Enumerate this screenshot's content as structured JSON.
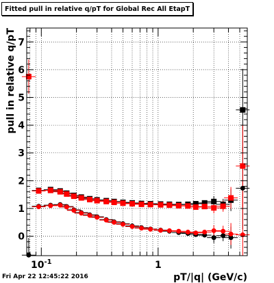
{
  "title": "Fitted pull in relative q/pT  for Global Rec All EtapT",
  "footer": "Fri Apr 22 12:45:22 2016",
  "chart_data": {
    "type": "scatter",
    "title": "Fitted pull in relative q/pT  for Global Rec All EtapT",
    "xlabel": "pT/|q| (GeV/c)",
    "ylabel": "pull in relative q/pT",
    "xscale": "log",
    "xlim": [
      0.075,
      5.8
    ],
    "ylim": [
      -0.7,
      7.5
    ],
    "grid": true,
    "x_ticks": [
      {
        "value": 0.1,
        "label": "10",
        "sup": "-1"
      },
      {
        "value": 1,
        "label": "1",
        "sup": ""
      }
    ],
    "y_ticks": [
      0,
      1,
      2,
      3,
      4,
      5,
      6,
      7
    ],
    "series": [
      {
        "color": "#000000",
        "marker": "square",
        "points": [
          [
            0.095,
            1.65
          ],
          [
            0.12,
            1.68
          ],
          [
            0.145,
            1.63
          ],
          [
            0.165,
            1.55
          ],
          [
            0.19,
            1.47
          ],
          [
            0.22,
            1.41
          ],
          [
            0.26,
            1.35
          ],
          [
            0.3,
            1.31
          ],
          [
            0.36,
            1.28
          ],
          [
            0.42,
            1.25
          ],
          [
            0.5,
            1.22
          ],
          [
            0.6,
            1.2
          ],
          [
            0.72,
            1.18
          ],
          [
            0.86,
            1.17
          ],
          [
            1.05,
            1.16
          ],
          [
            1.25,
            1.15
          ],
          [
            1.5,
            1.14
          ],
          [
            1.8,
            1.15
          ],
          [
            2.1,
            1.17
          ],
          [
            2.5,
            1.2
          ],
          [
            3.0,
            1.25
          ],
          [
            3.6,
            1.15
          ],
          [
            4.2,
            1.3
          ],
          [
            5.3,
            4.55
          ]
        ]
      },
      {
        "color": "#000000",
        "marker": "circle",
        "points": [
          [
            0.078,
            -0.68
          ],
          [
            0.095,
            1.08
          ],
          [
            0.12,
            1.12
          ],
          [
            0.145,
            1.14
          ],
          [
            0.165,
            1.07
          ],
          [
            0.19,
            0.95
          ],
          [
            0.22,
            0.85
          ],
          [
            0.26,
            0.77
          ],
          [
            0.3,
            0.7
          ],
          [
            0.36,
            0.6
          ],
          [
            0.42,
            0.52
          ],
          [
            0.5,
            0.45
          ],
          [
            0.6,
            0.37
          ],
          [
            0.72,
            0.31
          ],
          [
            0.86,
            0.26
          ],
          [
            1.05,
            0.22
          ],
          [
            1.25,
            0.18
          ],
          [
            1.5,
            0.13
          ],
          [
            1.8,
            0.1
          ],
          [
            2.1,
            0.06
          ],
          [
            2.5,
            0.04
          ],
          [
            3.0,
            -0.05
          ],
          [
            3.6,
            0.02
          ],
          [
            4.2,
            -0.05
          ],
          [
            5.3,
            1.73
          ]
        ]
      },
      {
        "color": "#ff0000",
        "marker": "square",
        "points": [
          [
            0.078,
            5.75
          ],
          [
            0.095,
            1.63
          ],
          [
            0.12,
            1.65
          ],
          [
            0.145,
            1.6
          ],
          [
            0.165,
            1.52
          ],
          [
            0.19,
            1.44
          ],
          [
            0.22,
            1.38
          ],
          [
            0.26,
            1.32
          ],
          [
            0.3,
            1.28
          ],
          [
            0.36,
            1.25
          ],
          [
            0.42,
            1.22
          ],
          [
            0.5,
            1.19
          ],
          [
            0.6,
            1.17
          ],
          [
            0.72,
            1.15
          ],
          [
            0.86,
            1.14
          ],
          [
            1.05,
            1.13
          ],
          [
            1.25,
            1.12
          ],
          [
            1.5,
            1.1
          ],
          [
            1.8,
            1.09
          ],
          [
            2.1,
            1.05
          ],
          [
            2.5,
            1.07
          ],
          [
            3.0,
            1.02
          ],
          [
            3.6,
            1.08
          ],
          [
            4.2,
            1.38
          ],
          [
            5.3,
            2.53
          ]
        ]
      },
      {
        "color": "#ff0000",
        "marker": "circle",
        "points": [
          [
            0.095,
            1.06
          ],
          [
            0.12,
            1.1
          ],
          [
            0.145,
            1.12
          ],
          [
            0.165,
            1.05
          ],
          [
            0.19,
            0.93
          ],
          [
            0.22,
            0.83
          ],
          [
            0.26,
            0.75
          ],
          [
            0.3,
            0.68
          ],
          [
            0.36,
            0.58
          ],
          [
            0.42,
            0.5
          ],
          [
            0.5,
            0.43
          ],
          [
            0.6,
            0.35
          ],
          [
            0.72,
            0.29
          ],
          [
            0.86,
            0.25
          ],
          [
            1.05,
            0.21
          ],
          [
            1.25,
            0.2
          ],
          [
            1.5,
            0.18
          ],
          [
            1.8,
            0.15
          ],
          [
            2.1,
            0.12
          ],
          [
            2.5,
            0.15
          ],
          [
            3.0,
            0.2
          ],
          [
            3.6,
            0.18
          ],
          [
            4.2,
            0.08
          ],
          [
            5.3,
            0.05
          ]
        ]
      }
    ]
  }
}
